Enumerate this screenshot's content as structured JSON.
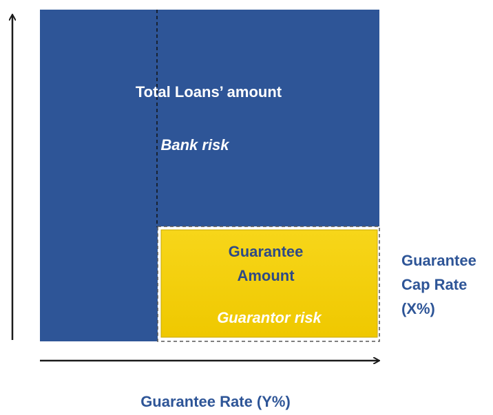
{
  "diagram": {
    "bank_box": {
      "title": "Total Loans’ amount",
      "risk": "Bank risk"
    },
    "guarantee_box": {
      "lines": [
        "Guarantee",
        "Amount"
      ],
      "risk": "Guarantor risk"
    },
    "cap_label": [
      "Guarantee",
      "Cap Rate",
      "(X%)"
    ],
    "x_axis_label": "Guarantee Rate (Y%)"
  }
}
